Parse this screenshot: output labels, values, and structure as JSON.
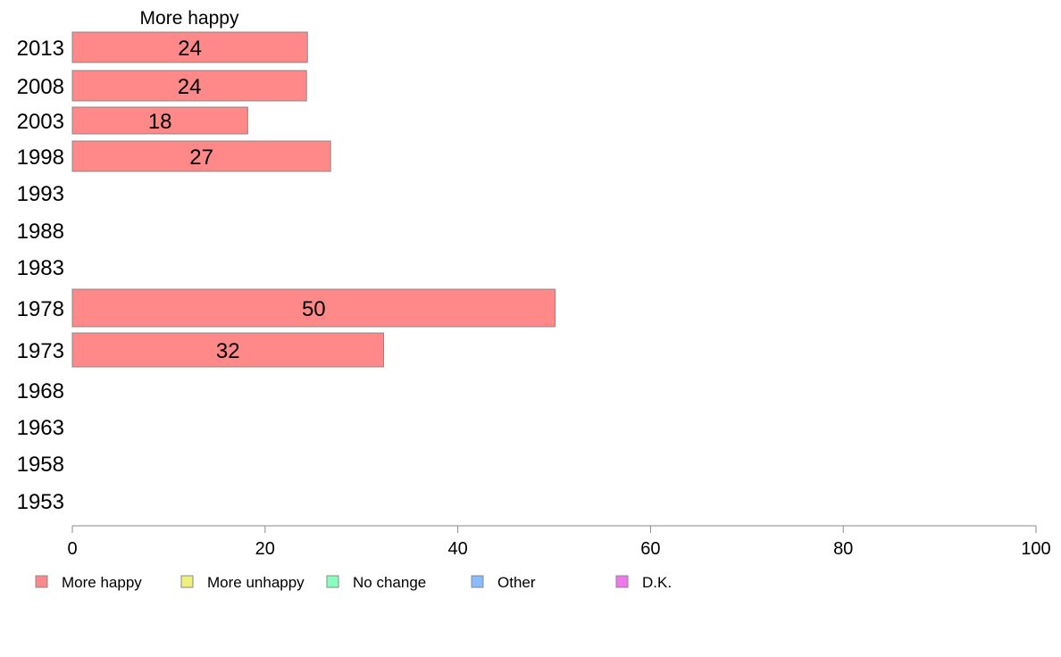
{
  "chart_data": {
    "type": "bar",
    "orientation": "horizontal",
    "series_title": "More happy",
    "categories": [
      "2013",
      "2008",
      "2003",
      "1998",
      "1993",
      "1988",
      "1983",
      "1978",
      "1973",
      "1968",
      "1963",
      "1958",
      "1953"
    ],
    "series": [
      {
        "name": "More happy",
        "values": [
          24.4,
          24.3,
          18.2,
          26.8,
          null,
          null,
          null,
          50.1,
          32.3,
          null,
          null,
          null,
          null
        ],
        "labels": [
          "24",
          "24",
          "18",
          "27",
          "",
          "",
          "",
          "50",
          "32",
          "",
          "",
          "",
          ""
        ]
      }
    ],
    "xlim": [
      0,
      100
    ],
    "xticks": [
      0,
      20,
      40,
      60,
      80,
      100
    ],
    "grid": false,
    "legend_position": "bottom",
    "legend": [
      {
        "label": "More happy",
        "color": "#ff8888"
      },
      {
        "label": "More unhappy",
        "color": "#f0f080"
      },
      {
        "label": "No change",
        "color": "#88ffbb"
      },
      {
        "label": "Other",
        "color": "#88bbff"
      },
      {
        "label": "D.K.",
        "color": "#ee77ee"
      }
    ],
    "bar_color": "#ff8888",
    "bar_stroke": "#888888"
  }
}
